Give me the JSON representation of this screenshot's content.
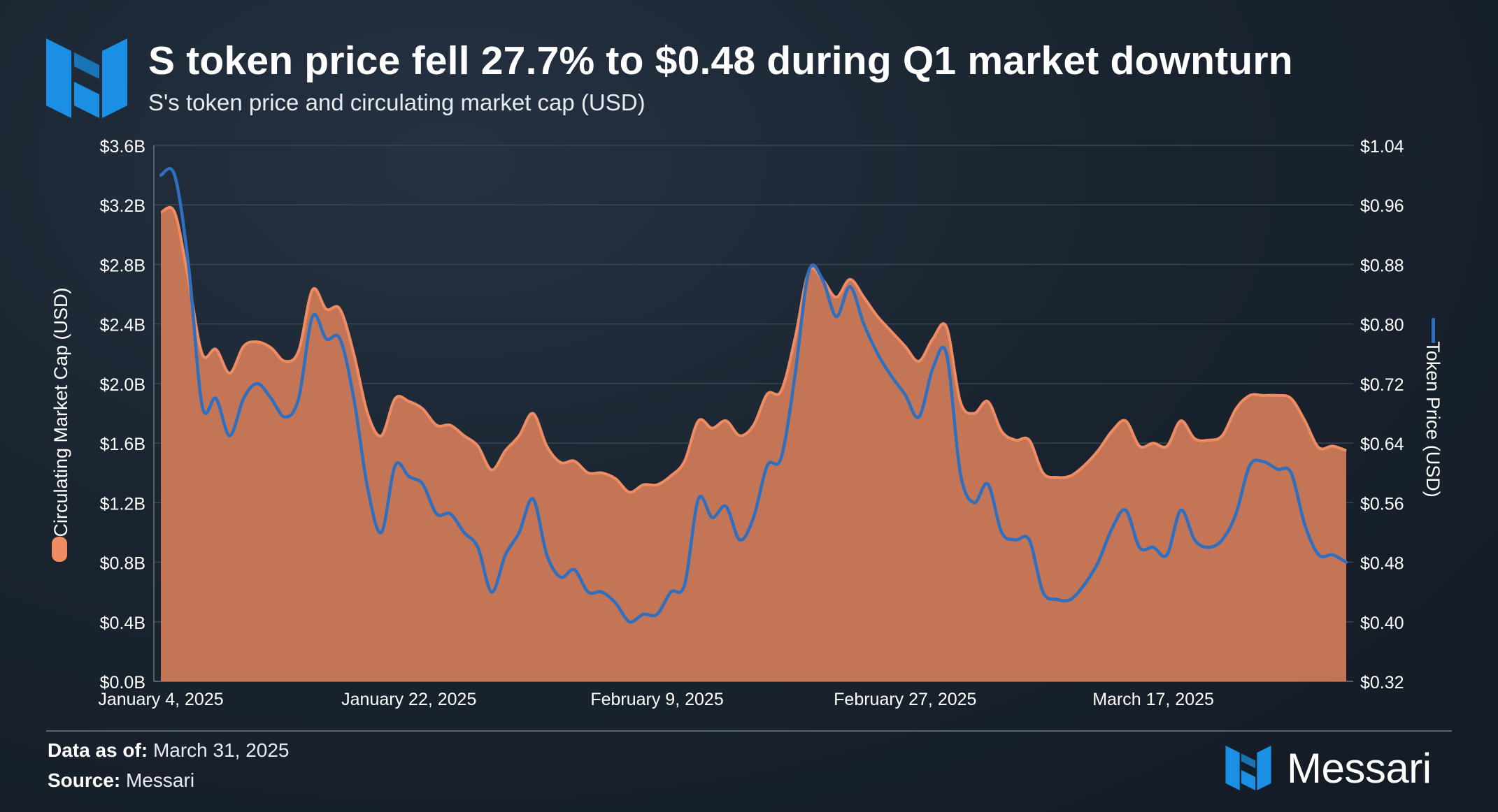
{
  "header": {
    "title": "S token price fell 27.7% to $0.48 during Q1 market downturn",
    "subtitle": "S's token price and circulating market cap (USD)"
  },
  "footer": {
    "data_as_of_label": "Data as of:",
    "data_as_of_value": "March 31, 2025",
    "source_label": "Source:",
    "source_value": "Messari",
    "brand_name": "Messari"
  },
  "colors": {
    "market_cap_fill": "#c47555",
    "market_cap_edge": "#ef8c63",
    "token_price_line": "#2f6fbf",
    "accent_logo": "#1a8fe3",
    "grid": "#3a4552"
  },
  "icons": {
    "logo": "messari-logo-icon"
  },
  "chart_data": {
    "type": "area",
    "x_axis": {
      "start": "2025-01-04",
      "end": "2025-03-31",
      "tick_labels": [
        "January 4, 2025",
        "January 22, 2025",
        "February 9, 2025",
        "February 27, 2025",
        "March 17, 2025"
      ]
    },
    "y_left": {
      "label": "Circulating Market Cap (USD)",
      "range": [
        0,
        3.6
      ],
      "tick_labels": [
        "$0.0B",
        "$0.4B",
        "$0.8B",
        "$1.2B",
        "$1.6B",
        "$2.0B",
        "$2.4B",
        "$2.8B",
        "$3.2B",
        "$3.6B"
      ]
    },
    "y_right": {
      "label": "Token Price (USD)",
      "range": [
        0.32,
        1.04
      ],
      "tick_labels": [
        "$0.32",
        "$0.40",
        "$0.48",
        "$0.56",
        "$0.64",
        "$0.72",
        "$0.80",
        "$0.88",
        "$0.96",
        "$1.04"
      ]
    },
    "grid": true,
    "series": [
      {
        "name": "Circulating Market Cap (USD)",
        "type": "area",
        "axis": "left",
        "points": [
          [
            "2025-01-04",
            3.15
          ],
          [
            "2025-01-05",
            3.15
          ],
          [
            "2025-01-06",
            2.7
          ],
          [
            "2025-01-07",
            2.2
          ],
          [
            "2025-01-08",
            2.23
          ],
          [
            "2025-01-09",
            2.07
          ],
          [
            "2025-01-10",
            2.25
          ],
          [
            "2025-01-11",
            2.28
          ],
          [
            "2025-01-12",
            2.24
          ],
          [
            "2025-01-13",
            2.15
          ],
          [
            "2025-01-14",
            2.22
          ],
          [
            "2025-01-15",
            2.63
          ],
          [
            "2025-01-16",
            2.5
          ],
          [
            "2025-01-17",
            2.5
          ],
          [
            "2025-01-18",
            2.2
          ],
          [
            "2025-01-19",
            1.8
          ],
          [
            "2025-01-20",
            1.65
          ],
          [
            "2025-01-21",
            1.9
          ],
          [
            "2025-01-22",
            1.88
          ],
          [
            "2025-01-23",
            1.83
          ],
          [
            "2025-01-24",
            1.72
          ],
          [
            "2025-01-25",
            1.72
          ],
          [
            "2025-01-26",
            1.65
          ],
          [
            "2025-01-27",
            1.58
          ],
          [
            "2025-01-28",
            1.42
          ],
          [
            "2025-01-29",
            1.55
          ],
          [
            "2025-01-30",
            1.65
          ],
          [
            "2025-01-31",
            1.8
          ],
          [
            "2025-02-01",
            1.58
          ],
          [
            "2025-02-02",
            1.47
          ],
          [
            "2025-02-03",
            1.48
          ],
          [
            "2025-02-04",
            1.4
          ],
          [
            "2025-02-05",
            1.4
          ],
          [
            "2025-02-06",
            1.36
          ],
          [
            "2025-02-07",
            1.27
          ],
          [
            "2025-02-08",
            1.32
          ],
          [
            "2025-02-09",
            1.32
          ],
          [
            "2025-02-10",
            1.38
          ],
          [
            "2025-02-11",
            1.48
          ],
          [
            "2025-02-12",
            1.75
          ],
          [
            "2025-02-13",
            1.7
          ],
          [
            "2025-02-14",
            1.75
          ],
          [
            "2025-02-15",
            1.65
          ],
          [
            "2025-02-16",
            1.72
          ],
          [
            "2025-02-17",
            1.93
          ],
          [
            "2025-02-18",
            1.95
          ],
          [
            "2025-02-19",
            2.3
          ],
          [
            "2025-02-20",
            2.75
          ],
          [
            "2025-02-21",
            2.7
          ],
          [
            "2025-02-22",
            2.58
          ],
          [
            "2025-02-23",
            2.7
          ],
          [
            "2025-02-24",
            2.58
          ],
          [
            "2025-02-25",
            2.45
          ],
          [
            "2025-02-26",
            2.35
          ],
          [
            "2025-02-27",
            2.25
          ],
          [
            "2025-02-28",
            2.15
          ],
          [
            "2025-03-01",
            2.3
          ],
          [
            "2025-03-02",
            2.38
          ],
          [
            "2025-03-03",
            1.88
          ],
          [
            "2025-03-04",
            1.8
          ],
          [
            "2025-03-05",
            1.88
          ],
          [
            "2025-03-06",
            1.68
          ],
          [
            "2025-03-07",
            1.62
          ],
          [
            "2025-03-08",
            1.62
          ],
          [
            "2025-03-09",
            1.4
          ],
          [
            "2025-03-10",
            1.37
          ],
          [
            "2025-03-11",
            1.38
          ],
          [
            "2025-03-12",
            1.45
          ],
          [
            "2025-03-13",
            1.55
          ],
          [
            "2025-03-14",
            1.68
          ],
          [
            "2025-03-15",
            1.75
          ],
          [
            "2025-03-16",
            1.58
          ],
          [
            "2025-03-17",
            1.6
          ],
          [
            "2025-03-18",
            1.58
          ],
          [
            "2025-03-19",
            1.75
          ],
          [
            "2025-03-20",
            1.63
          ],
          [
            "2025-03-21",
            1.62
          ],
          [
            "2025-03-22",
            1.65
          ],
          [
            "2025-03-23",
            1.83
          ],
          [
            "2025-03-24",
            1.92
          ],
          [
            "2025-03-25",
            1.92
          ],
          [
            "2025-03-26",
            1.92
          ],
          [
            "2025-03-27",
            1.9
          ],
          [
            "2025-03-28",
            1.75
          ],
          [
            "2025-03-29",
            1.57
          ],
          [
            "2025-03-30",
            1.58
          ],
          [
            "2025-03-31",
            1.55
          ]
        ]
      },
      {
        "name": "Token Price (USD)",
        "type": "line",
        "axis": "right",
        "points": [
          [
            "2025-01-04",
            1.0
          ],
          [
            "2025-01-05",
            1.0
          ],
          [
            "2025-01-06",
            0.88
          ],
          [
            "2025-01-07",
            0.69
          ],
          [
            "2025-01-08",
            0.7
          ],
          [
            "2025-01-09",
            0.65
          ],
          [
            "2025-01-10",
            0.7
          ],
          [
            "2025-01-11",
            0.72
          ],
          [
            "2025-01-12",
            0.7
          ],
          [
            "2025-01-13",
            0.675
          ],
          [
            "2025-01-14",
            0.7
          ],
          [
            "2025-01-15",
            0.81
          ],
          [
            "2025-01-16",
            0.78
          ],
          [
            "2025-01-17",
            0.78
          ],
          [
            "2025-01-18",
            0.7
          ],
          [
            "2025-01-19",
            0.58
          ],
          [
            "2025-01-20",
            0.52
          ],
          [
            "2025-01-21",
            0.61
          ],
          [
            "2025-01-22",
            0.595
          ],
          [
            "2025-01-23",
            0.585
          ],
          [
            "2025-01-24",
            0.545
          ],
          [
            "2025-01-25",
            0.545
          ],
          [
            "2025-01-26",
            0.52
          ],
          [
            "2025-01-27",
            0.5
          ],
          [
            "2025-01-28",
            0.44
          ],
          [
            "2025-01-29",
            0.49
          ],
          [
            "2025-01-30",
            0.52
          ],
          [
            "2025-01-31",
            0.565
          ],
          [
            "2025-02-01",
            0.49
          ],
          [
            "2025-02-02",
            0.46
          ],
          [
            "2025-02-03",
            0.47
          ],
          [
            "2025-02-04",
            0.44
          ],
          [
            "2025-02-05",
            0.44
          ],
          [
            "2025-02-06",
            0.425
          ],
          [
            "2025-02-07",
            0.4
          ],
          [
            "2025-02-08",
            0.41
          ],
          [
            "2025-02-09",
            0.41
          ],
          [
            "2025-02-10",
            0.44
          ],
          [
            "2025-02-11",
            0.45
          ],
          [
            "2025-02-12",
            0.565
          ],
          [
            "2025-02-13",
            0.54
          ],
          [
            "2025-02-14",
            0.555
          ],
          [
            "2025-02-15",
            0.51
          ],
          [
            "2025-02-16",
            0.54
          ],
          [
            "2025-02-17",
            0.61
          ],
          [
            "2025-02-18",
            0.62
          ],
          [
            "2025-02-19",
            0.73
          ],
          [
            "2025-02-20",
            0.87
          ],
          [
            "2025-02-21",
            0.86
          ],
          [
            "2025-02-22",
            0.81
          ],
          [
            "2025-02-23",
            0.85
          ],
          [
            "2025-02-24",
            0.8
          ],
          [
            "2025-02-25",
            0.76
          ],
          [
            "2025-02-26",
            0.73
          ],
          [
            "2025-02-27",
            0.705
          ],
          [
            "2025-02-28",
            0.675
          ],
          [
            "2025-03-01",
            0.74
          ],
          [
            "2025-03-02",
            0.76
          ],
          [
            "2025-03-03",
            0.6
          ],
          [
            "2025-03-04",
            0.56
          ],
          [
            "2025-03-05",
            0.585
          ],
          [
            "2025-03-06",
            0.52
          ],
          [
            "2025-03-07",
            0.51
          ],
          [
            "2025-03-08",
            0.51
          ],
          [
            "2025-03-09",
            0.44
          ],
          [
            "2025-03-10",
            0.43
          ],
          [
            "2025-03-11",
            0.43
          ],
          [
            "2025-03-12",
            0.45
          ],
          [
            "2025-03-13",
            0.48
          ],
          [
            "2025-03-14",
            0.525
          ],
          [
            "2025-03-15",
            0.55
          ],
          [
            "2025-03-16",
            0.5
          ],
          [
            "2025-03-17",
            0.5
          ],
          [
            "2025-03-18",
            0.49
          ],
          [
            "2025-03-19",
            0.55
          ],
          [
            "2025-03-20",
            0.51
          ],
          [
            "2025-03-21",
            0.5
          ],
          [
            "2025-03-22",
            0.51
          ],
          [
            "2025-03-23",
            0.545
          ],
          [
            "2025-03-24",
            0.61
          ],
          [
            "2025-03-25",
            0.615
          ],
          [
            "2025-03-26",
            0.605
          ],
          [
            "2025-03-27",
            0.6
          ],
          [
            "2025-03-28",
            0.53
          ],
          [
            "2025-03-29",
            0.49
          ],
          [
            "2025-03-30",
            0.49
          ],
          [
            "2025-03-31",
            0.48
          ]
        ]
      }
    ]
  }
}
